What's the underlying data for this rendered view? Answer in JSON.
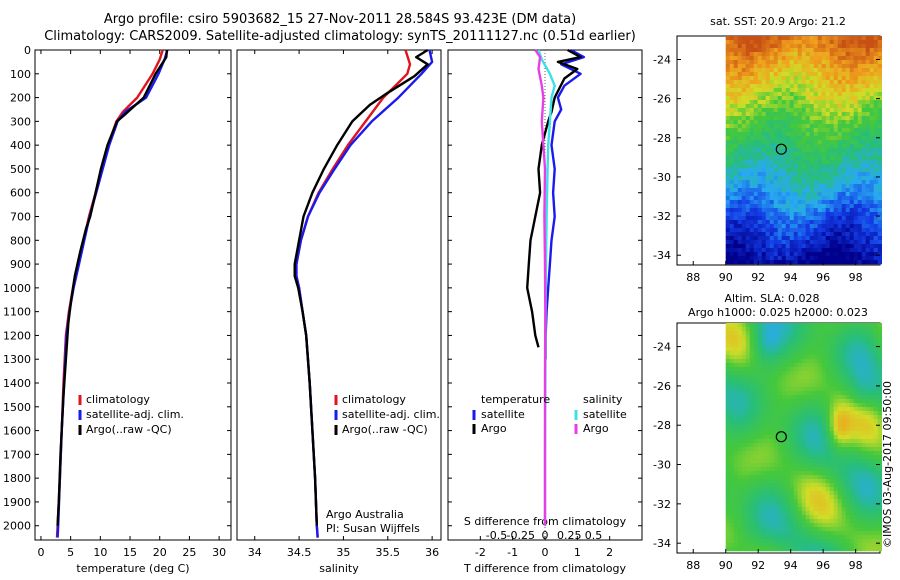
{
  "title": {
    "line1": "Argo profile: csiro 5903682_15 27-Nov-2011 28.584S 93.423E (DM data)",
    "line2": "Climatology: CARS2009. Satellite-adjusted climatology: synTS_20111127.nc (0.51d earlier)"
  },
  "colors": {
    "climatology": "#e0141e",
    "satellite_adj": "#1a1aee",
    "argo": "#000000",
    "s_satellite": "#3ee0e8",
    "s_argo": "#e83ee8"
  },
  "chart_data": [
    {
      "id": "temperature",
      "type": "line",
      "xlabel": "temperature (deg C)",
      "ylabel": "",
      "xlim": [
        -1,
        32
      ],
      "ylim": [
        2060,
        0
      ],
      "xticks": [
        0,
        5,
        10,
        15,
        20,
        25,
        30
      ],
      "yticks": [
        0,
        100,
        200,
        300,
        400,
        500,
        600,
        700,
        800,
        900,
        1000,
        1100,
        1200,
        1300,
        1400,
        1500,
        1600,
        1700,
        1800,
        1900,
        2000
      ],
      "legend": [
        "climatology",
        "satellite-adj. clim.",
        "Argo(..raw -QC)"
      ],
      "series": [
        {
          "name": "climatology",
          "color": "#e0141e",
          "points": [
            [
              20.5,
              0
            ],
            [
              20,
              40
            ],
            [
              18.8,
              100
            ],
            [
              16.2,
              200
            ],
            [
              13.8,
              260
            ],
            [
              12.7,
              300
            ],
            [
              11.3,
              400
            ],
            [
              10.2,
              500
            ],
            [
              9.2,
              600
            ],
            [
              8.1,
              700
            ],
            [
              7.2,
              800
            ],
            [
              6.3,
              900
            ],
            [
              5.4,
              1000
            ],
            [
              4.7,
              1100
            ],
            [
              4.2,
              1200
            ],
            [
              3.8,
              1400
            ],
            [
              3.5,
              1600
            ],
            [
              3.2,
              1800
            ],
            [
              2.8,
              2000
            ],
            [
              2.7,
              2050
            ]
          ]
        },
        {
          "name": "satellite-adj. clim.",
          "color": "#1a1aee",
          "points": [
            [
              21.3,
              0
            ],
            [
              20.8,
              40
            ],
            [
              19.8,
              100
            ],
            [
              17.7,
              200
            ],
            [
              14.2,
              260
            ],
            [
              12.9,
              300
            ],
            [
              11.5,
              400
            ],
            [
              10.4,
              500
            ],
            [
              9.3,
              600
            ],
            [
              8.2,
              700
            ],
            [
              7.3,
              800
            ],
            [
              6.4,
              900
            ],
            [
              5.5,
              1000
            ],
            [
              4.8,
              1100
            ],
            [
              4.3,
              1200
            ],
            [
              3.9,
              1400
            ],
            [
              3.5,
              1600
            ],
            [
              3.2,
              1800
            ],
            [
              2.9,
              2000
            ],
            [
              2.8,
              2050
            ]
          ]
        },
        {
          "name": "Argo(..raw -QC)",
          "color": "#000000",
          "points": [
            [
              21.2,
              0
            ],
            [
              21.1,
              30
            ],
            [
              19.3,
              100
            ],
            [
              17.3,
              200
            ],
            [
              14.2,
              270
            ],
            [
              12.8,
              300
            ],
            [
              11.2,
              400
            ],
            [
              10.1,
              500
            ],
            [
              9.2,
              600
            ],
            [
              8.3,
              700
            ],
            [
              7.6,
              750
            ],
            [
              6.6,
              850
            ],
            [
              5.7,
              950
            ],
            [
              5.1,
              1050
            ],
            [
              4.6,
              1150
            ],
            [
              4.2,
              1300
            ],
            [
              3.8,
              1450
            ],
            [
              3.3,
              1700
            ],
            [
              3.0,
              1900
            ],
            [
              2.8,
              2000
            ]
          ]
        }
      ]
    },
    {
      "id": "salinity",
      "type": "line",
      "xlabel": "salinity",
      "ylabel": "",
      "xlim": [
        33.8,
        36.1
      ],
      "ylim": [
        2060,
        0
      ],
      "xticks": [
        34,
        34.5,
        35,
        35.5,
        36
      ],
      "xtick_labels": [
        "34",
        "34.5",
        "35",
        "35.5",
        "36"
      ],
      "legend": [
        "climatology",
        "satellite-adj. clim.",
        "Argo(..raw -QC)"
      ],
      "annotation": [
        "Argo Australia",
        "PI: Susan Wijffels"
      ],
      "series": [
        {
          "name": "climatology",
          "color": "#e0141e",
          "points": [
            [
              35.7,
              0
            ],
            [
              35.75,
              60
            ],
            [
              35.72,
              100
            ],
            [
              35.45,
              200
            ],
            [
              35.25,
              300
            ],
            [
              35.05,
              400
            ],
            [
              34.88,
              500
            ],
            [
              34.72,
              600
            ],
            [
              34.6,
              700
            ],
            [
              34.52,
              800
            ],
            [
              34.47,
              900
            ],
            [
              34.47,
              950
            ],
            [
              34.5,
              1000
            ],
            [
              34.54,
              1100
            ],
            [
              34.58,
              1200
            ],
            [
              34.62,
              1400
            ],
            [
              34.65,
              1600
            ],
            [
              34.68,
              1800
            ],
            [
              34.7,
              2000
            ],
            [
              34.71,
              2050
            ]
          ]
        },
        {
          "name": "satellite-adj. clim.",
          "color": "#1a1aee",
          "points": [
            [
              35.97,
              0
            ],
            [
              36.0,
              50
            ],
            [
              35.88,
              100
            ],
            [
              35.62,
              200
            ],
            [
              35.32,
              300
            ],
            [
              35.08,
              400
            ],
            [
              34.9,
              500
            ],
            [
              34.73,
              600
            ],
            [
              34.6,
              700
            ],
            [
              34.52,
              800
            ],
            [
              34.47,
              900
            ],
            [
              34.47,
              950
            ],
            [
              34.5,
              1000
            ],
            [
              34.54,
              1100
            ],
            [
              34.58,
              1200
            ],
            [
              34.62,
              1400
            ],
            [
              34.65,
              1600
            ],
            [
              34.68,
              1800
            ],
            [
              34.7,
              2000
            ],
            [
              34.71,
              2050
            ]
          ]
        },
        {
          "name": "Argo(..raw -QC)",
          "color": "#000000",
          "points": [
            [
              35.95,
              0
            ],
            [
              35.82,
              30
            ],
            [
              35.95,
              60
            ],
            [
              35.8,
              110
            ],
            [
              35.5,
              180
            ],
            [
              35.3,
              230
            ],
            [
              35.1,
              300
            ],
            [
              34.93,
              400
            ],
            [
              34.78,
              500
            ],
            [
              34.65,
              600
            ],
            [
              34.55,
              700
            ],
            [
              34.5,
              800
            ],
            [
              34.45,
              900
            ],
            [
              34.45,
              950
            ],
            [
              34.49,
              1000
            ],
            [
              34.54,
              1100
            ],
            [
              34.58,
              1200
            ],
            [
              34.62,
              1400
            ],
            [
              34.65,
              1600
            ],
            [
              34.68,
              1800
            ],
            [
              34.7,
              2000
            ]
          ]
        }
      ]
    },
    {
      "id": "difference",
      "type": "line",
      "xlabel": "T difference from climatology",
      "xlabel_top": "S difference from climatology",
      "xlim": [
        -3,
        3
      ],
      "ylim": [
        2060,
        0
      ],
      "xticks": [
        -2,
        -1,
        0,
        1,
        2
      ],
      "xtick_labels": [
        "-2",
        "-1",
        "0",
        "1",
        "2"
      ],
      "sticks": [
        -0.5,
        -0.25,
        0,
        0.25,
        0.5
      ],
      "stick_labels": [
        "-0.5",
        "-0.25",
        "0",
        "0.25",
        "0.5"
      ],
      "legend_headers": {
        "temperature": "temperature",
        "salinity": "salinity"
      },
      "legend": [
        "satellite",
        "Argo",
        "satellite",
        "Argo"
      ],
      "series": [
        {
          "name": "T satellite",
          "color": "#1a1aee",
          "points": [
            [
              0.8,
              0
            ],
            [
              1.2,
              30
            ],
            [
              0.5,
              60
            ],
            [
              1.1,
              100
            ],
            [
              0.6,
              150
            ],
            [
              0.4,
              200
            ],
            [
              0.5,
              250
            ],
            [
              0.3,
              300
            ],
            [
              0.2,
              400
            ],
            [
              0.3,
              500
            ],
            [
              0.25,
              600
            ],
            [
              0.3,
              700
            ],
            [
              0.2,
              800
            ],
            [
              0.15,
              900
            ],
            [
              0.1,
              1000
            ],
            [
              0.05,
              1100
            ],
            [
              0.02,
              1200
            ],
            [
              0.02,
              1300
            ]
          ]
        },
        {
          "name": "T Argo",
          "color": "#000000",
          "points": [
            [
              0.7,
              0
            ],
            [
              1.1,
              30
            ],
            [
              0.4,
              50
            ],
            [
              1.0,
              80
            ],
            [
              0.6,
              120
            ],
            [
              0.3,
              200
            ],
            [
              0.2,
              260
            ],
            [
              0.1,
              300
            ],
            [
              -0.1,
              400
            ],
            [
              -0.2,
              500
            ],
            [
              -0.15,
              600
            ],
            [
              -0.3,
              700
            ],
            [
              -0.45,
              800
            ],
            [
              -0.5,
              900
            ],
            [
              -0.55,
              1000
            ],
            [
              -0.4,
              1100
            ],
            [
              -0.3,
              1200
            ],
            [
              -0.2,
              1250
            ]
          ]
        },
        {
          "name": "S satellite",
          "color": "#3ee0e8",
          "points": [
            [
              -0.2,
              0
            ],
            [
              -0.1,
              40
            ],
            [
              0.15,
              100
            ],
            [
              0.3,
              150
            ],
            [
              0.2,
              200
            ],
            [
              0.15,
              300
            ],
            [
              0.1,
              400
            ],
            [
              0.08,
              500
            ],
            [
              0.05,
              700
            ],
            [
              0.03,
              900
            ],
            [
              0.02,
              1100
            ],
            [
              0.01,
              1400
            ],
            [
              0,
              1700
            ],
            [
              0,
              2000
            ]
          ]
        },
        {
          "name": "S Argo",
          "color": "#e83ee8",
          "points": [
            [
              -0.3,
              0
            ],
            [
              -0.15,
              30
            ],
            [
              -0.2,
              80
            ],
            [
              -0.1,
              150
            ],
            [
              -0.05,
              200
            ],
            [
              -0.1,
              300
            ],
            [
              -0.05,
              400
            ],
            [
              0,
              500
            ],
            [
              -0.02,
              700
            ],
            [
              0,
              900
            ],
            [
              0.01,
              1100
            ],
            [
              0,
              1400
            ],
            [
              0,
              1700
            ],
            [
              0,
              2000
            ]
          ]
        }
      ]
    },
    {
      "id": "sst-map",
      "type": "heatmap",
      "title": "sat. SST: 20.9 Argo: 21.2",
      "xlim": [
        87,
        99.5
      ],
      "ylim": [
        -34.5,
        -22.8
      ],
      "xticks": [
        88,
        90,
        92,
        94,
        96,
        98
      ],
      "yticks": [
        -24,
        -26,
        -28,
        -30,
        -32,
        -34
      ],
      "marker": {
        "lon": 93.423,
        "lat": -28.584
      }
    },
    {
      "id": "sla-map",
      "type": "heatmap",
      "title_lines": [
        "Altim. SLA: 0.028",
        "Argo h1000: 0.025 h2000: 0.023"
      ],
      "xlim": [
        87,
        99.5
      ],
      "ylim": [
        -34.5,
        -22.8
      ],
      "xticks": [
        88,
        90,
        92,
        94,
        96,
        98
      ],
      "yticks": [
        -24,
        -26,
        -28,
        -30,
        -32,
        -34
      ],
      "marker": {
        "lon": 93.423,
        "lat": -28.584
      }
    }
  ],
  "credit": "©IMOS 03-Aug-2017 09:50:00"
}
